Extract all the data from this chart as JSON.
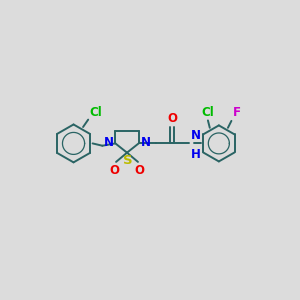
{
  "bg_color": "#dcdcdc",
  "bond_color": "#2a6464",
  "bond_width": 1.4,
  "atom_colors": {
    "N": "#0000ee",
    "S": "#bbbb00",
    "O": "#ee0000",
    "Cl": "#00bb00",
    "F": "#cc00cc",
    "NH_N": "#0000ee",
    "NH_H": "#2a6464"
  },
  "font_size": 8.5,
  "fig_width": 3.0,
  "fig_height": 3.0,
  "dpi": 100,
  "xlim": [
    0,
    10
  ],
  "ylim": [
    0,
    10
  ]
}
